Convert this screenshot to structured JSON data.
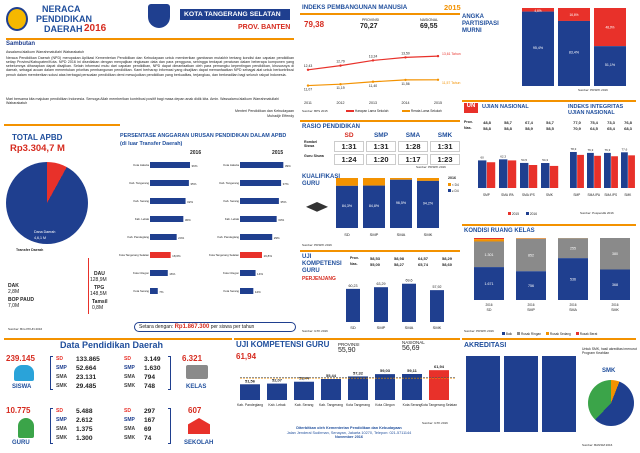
{
  "header": {
    "title_line1": "NERACA",
    "title_line2": "PENDIDIKAN",
    "title_line3": "DAERAH",
    "year": "2016",
    "region": "KOTA TANGERANG SELATAN",
    "province": "PROV. BANTEN"
  },
  "sambutan": {
    "title": "Sambutan",
    "greeting": "Assalamu'alaikum Warrahmatullahi Wabarakatuh",
    "paragraph1": "Neraca Pendidikan Daerah (NPD) merupakan Aplikasi Kementerian Pendidikan dan Kebudayaan untuk memberikan gambaran mutakhir tentang kondisi dan capaian pendidikan setiap Provinsi/Kabupaten/Kota. NPD 2016 ini disediakan dengan menyajikan ringkasan data dan para pengguna, sehingga terdapat peraturan dalam beberapa komponen yang sebelumnya diharapkan dapat disajikan. Selain informasi mutu dari capaian pendidikan, NPD dapat dimanfaatkan oleh para pemangku kepentingan pendidikan, khususnya di daerah, sebagai acuan dalam menentukan prioritas pembangunan pendidikan. Kami berharap informasi yang disajikan dapat memanfaatkan NPD sebagai alat untuk berkontribusi penuh dalam memberikan solusi atas berbagai persoalan pendidikan demi mewujudkan pendidikan yang berkualitas, terjangkau, dan berkeadilan bagi seluruh rakyat Indonesia.",
    "paragraph2": "Mari bersama kita majukan pendidikan Indonesia. Semoga Allah memberikan kontribusi positif bagi masa depan anak didik kita. Amin. Wassalamu'alaikum Warrahmatullahi Wabarakatuh",
    "signature_line1": "Menteri Pendidikan dan Kebudayaan",
    "signature_line2": "Muhadjir Effendy"
  },
  "ipm": {
    "title": "INDEKS PEMBANGUNAN MANUSIA",
    "year": "2015",
    "kota_value": "79,38",
    "provinsi_label": "PROVINSI",
    "provinsi_value": "70,27",
    "nasional_label": "NASIONAL",
    "nasional_value": "69,55",
    "line_labels_top": [
      "12,43",
      "12,79",
      "13,24",
      "13,50"
    ],
    "line_labels_bottom": [
      "11,07",
      "11,19",
      "11,40",
      "11,56"
    ],
    "end_label_red": "13,61 Tahun",
    "end_label_orange": "11,57 Tahun",
    "x_labels": [
      "2011",
      "2012",
      "2013",
      "2014",
      "2015"
    ],
    "legend_red": "Harapan Lama Sekolah",
    "legend_orange": "Rerata Lama Sekolah",
    "source": "Sumber: BPS 2015"
  },
  "apm": {
    "title_line1": "ANGKA",
    "title_line2": "PARTISIPASI",
    "title_line3": "MURNI",
    "source": "Sumber: PDSPK 2016"
  },
  "total_apbd": {
    "label": "TOTAL APBD",
    "value": "Rp3.304,7 M",
    "dana_daerah_label": "Dana Daerah",
    "dana_daerah_value": "4,6,1 M",
    "transfer_daerah_label": "Transfer Daerah",
    "dak_label": "DAK",
    "dak_value": "2,8M",
    "bop_label": "BOP PAUD",
    "bop_value": "7,0M",
    "dau_label": "DAU",
    "dau_value": "128,9M",
    "tpg_label": "TPG",
    "tpg_value": "148,5M",
    "tamsil_label": "Tamsil",
    "tamsil_value": "0,8M",
    "source": "Sumber: Biro PKUN 2016"
  },
  "anggaran": {
    "title": "PERSENTASE ANGGARAN URUSAN PENDIDIKAN DALAM APBD",
    "subtitle": "(di luar Transfer Daerah)",
    "year_left": "2016",
    "year_right": "2015",
    "footer_label": "Setara dengan:",
    "footer_value": "Rp1.867.300",
    "footer_suffix": "per siswa per tahun"
  },
  "rasio": {
    "title": "RASIO PENDIDIKAN",
    "headers": [
      "SD",
      "SMP",
      "SMA",
      "SMK"
    ],
    "rombel_label": "Rombel Siswa",
    "guru_label": "Guru Siswa",
    "rombel": [
      "1:31",
      "1:31",
      "1:28",
      "1:31"
    ],
    "guru": [
      "1:24",
      "1:20",
      "1:17",
      "1:23"
    ],
    "source": "Sumber: PDSPK 2016"
  },
  "un": {
    "badge": "UN",
    "title_left": "UJIAN NASIONAL",
    "title_right": "INDEKS INTEGRITAS UJIAN NASIONAL",
    "left_row1_label": "Prov.",
    "left_row1": [
      "48,8",
      "58,7",
      "67,4",
      "54,7"
    ],
    "left_row2_label": "Nas.",
    "left_row2": [
      "58,8",
      "58,8",
      "58,9",
      "58,5"
    ],
    "right_row1": [
      "77,0",
      "75,4",
      "73,3",
      "76,8"
    ],
    "right_row2": [
      "70,9",
      "64,5",
      "65,4",
      "68,3"
    ],
    "cats": [
      "SMP",
      "SMA IPA",
      "SMA IPS",
      "SMK"
    ],
    "legend_2015": "2015",
    "legend_2016": "2016",
    "source": "Sumber: Puspendik 2016"
  },
  "kualifikasi": {
    "title_line1": "KUALIFIKASI",
    "title_line2": "GURU",
    "legend": [
      "< D4",
      "≥ D4"
    ],
    "year": "2016",
    "source": "Sumber: PDSPK 2016"
  },
  "ukg_small": {
    "title_line1": "UJI",
    "title_line2": "KOMPETENSI",
    "title_line3": "GURU",
    "subtitle": "PERJENJANG",
    "prov_label": "Prov.",
    "nas_label": "Nas.",
    "prov": [
      "58,53",
      "58,98",
      "64,57",
      "58,29"
    ],
    "nas": [
      "55,00",
      "58,27",
      "65,74",
      "58,60"
    ],
    "cats": [
      "SD",
      "SMP",
      "SMA",
      "SMK"
    ],
    "source": "Sumber: GTK 2016"
  },
  "kondisi_ruang": {
    "title": "KONDISI RUANG KELAS",
    "cats": [
      "SD",
      "SMP",
      "SMA",
      "SMK"
    ],
    "years": [
      "2016",
      "2016",
      "2016",
      "2016"
    ],
    "legend": [
      "Baik",
      "Rusak Ringan",
      "Rusak Sedang",
      "Rusak Berat"
    ],
    "source": "Sumber: PDSPK 2016"
  },
  "data_pendidikan": {
    "title": "Data Pendidikan Daerah",
    "siswa_total": "239.145",
    "siswa_label": "SISWA",
    "siswa_sd": "133.865",
    "siswa_smp": "52.664",
    "siswa_sma": "23.131",
    "siswa_smk": "29.485",
    "guru_total": "10.775",
    "guru_label": "GURU",
    "guru_sd": "5.488",
    "guru_smp": "2.612",
    "guru_sma": "1.375",
    "guru_smk": "1.300",
    "kelas_total": "6.321",
    "kelas_label": "KELAS",
    "kelas_sd": "3.149",
    "kelas_smp": "1.630",
    "kelas_sma": "794",
    "kelas_smk": "748",
    "sekolah_total": "607",
    "sekolah_label": "SEKOLAH",
    "sekolah_sd": "297",
    "sekolah_smp": "167",
    "sekolah_sma": "69",
    "sekolah_smk": "74",
    "labels": [
      "SD",
      "SMP",
      "SMA",
      "SMK"
    ]
  },
  "ukg": {
    "title": "UJI KOMPETENSI GURU",
    "value": "61,94",
    "provinsi_label": "PROVINSI",
    "provinsi_value": "55,90",
    "nasional_label": "NASIONAL",
    "nasional_value": "56,69",
    "footer1": "Diterbitkan oleh Kementerian Pendidikan dan Kebudayaan",
    "footer2": "Jalan Jenderal Sudirman, Senayan, Jakarta 10270, Telepon: 021-5711144",
    "footer3": "November 2016",
    "source": "Sumber: GTK 2016"
  },
  "akreditasi": {
    "title": "AKREDITASI",
    "note": "Untuk SMK, hasil akreditasi menurut Program Keahlian",
    "smk_label": "SMK",
    "source": "Sumber: BANSM 2016"
  },
  "colors": {
    "red": "#e8312a",
    "navy": "#1f3f8f",
    "orange": "#f39200",
    "green": "#3ba449",
    "grey": "#8a8a8a"
  },
  "chart_data": [
    {
      "type": "line",
      "id": "ipm-lama-sekolah",
      "x": [
        "2011",
        "2012",
        "2013",
        "2014",
        "2015"
      ],
      "series": [
        {
          "name": "Harapan Lama Sekolah",
          "values": [
            12.43,
            12.79,
            13.24,
            13.5,
            13.61
          ]
        },
        {
          "name": "Rerata Lama Sekolah",
          "values": [
            11.07,
            11.19,
            11.4,
            11.56,
            11.57
          ]
        }
      ],
      "ylim": [
        10,
        15
      ]
    },
    {
      "type": "bar",
      "id": "apm",
      "categories": [
        "SD",
        "SMP",
        "SMA"
      ],
      "series": [
        {
          "name": "navy",
          "values": [
            95.4,
            83.4,
            51.1
          ]
        },
        {
          "name": "red",
          "values": [
            4.6,
            16.6,
            48.9
          ]
        }
      ],
      "stacked": true
    },
    {
      "type": "bar",
      "id": "anggaran-2016",
      "categories": [
        "Kota Jakarta",
        "Kab. Tangerang",
        "Kab. Serang",
        "Kab. Lebak",
        "Kab. Pandeglang",
        "Kota Tangerang Selatan",
        "Kota Cilegon",
        "Kota Serang"
      ],
      "values": [
        36.0,
        35.0,
        32.0,
        30.0,
        24.0,
        18.6,
        16.0,
        7.0
      ]
    },
    {
      "type": "bar",
      "id": "anggaran-2015",
      "categories": [
        "Kota Jakarta",
        "Kab. Tangerang",
        "Kab. Serang",
        "Kab. Lebak",
        "Kab. Pandeglang",
        "Kota Tangerang Selatan",
        "Kota Cilegon",
        "Kota Serang"
      ],
      "values": [
        39.0,
        37.0,
        35.0,
        33.0,
        29.0,
        19.8,
        14.0,
        12.0
      ]
    },
    {
      "type": "bar",
      "id": "kualifikasi-guru",
      "categories": [
        "SD",
        "SMP",
        "SMA",
        "SMK"
      ],
      "series": [
        {
          "name": "≥ D4",
          "values": [
            84.3,
            84.8,
            96.5,
            94.2
          ]
        },
        {
          "name": "< D4",
          "values": [
            15.7,
            15.2,
            3.5,
            5.8
          ]
        }
      ],
      "stacked": true
    },
    {
      "type": "bar",
      "id": "un",
      "categories": [
        "SMP",
        "SMA IPA",
        "SMA IPS",
        "SMK"
      ],
      "series": [
        {
          "name": "2015",
          "values": [
            60.0,
            62.3,
            54.5,
            54.3
          ]
        },
        {
          "name": "2016",
          "values": [
            56.0,
            60.0,
            50.0,
            48.0
          ]
        }
      ]
    },
    {
      "type": "bar",
      "id": "integritas-un",
      "categories": [
        "SMP",
        "SMA IPA",
        "SMA IPS",
        "SMK"
      ],
      "series": [
        {
          "name": "2015",
          "values": [
            78.3,
            76.3,
            76.3,
            77.6
          ]
        },
        {
          "name": "2016",
          "values": [
            72.0,
            70.0,
            69.0,
            71.0
          ]
        }
      ]
    },
    {
      "type": "bar",
      "id": "ukg-perjenjang",
      "categories": [
        "SD",
        "SMP",
        "SMA",
        "SMK"
      ],
      "values": [
        60.23,
        63.29,
        69.6,
        57.92
      ]
    },
    {
      "type": "bar",
      "id": "kondisi-ruang-kelas",
      "categories": [
        "SD",
        "SMP",
        "SMA",
        "SMK"
      ],
      "series": [
        {
          "name": "Baik",
          "values": [
            1671,
            756,
            536,
            368
          ]
        },
        {
          "name": "Rusak Ringan",
          "values": [
            1301,
            852,
            255,
            380
          ]
        },
        {
          "name": "Rusak Sedang",
          "values": [
            120,
            15,
            3,
            0
          ]
        },
        {
          "name": "Rusak Berat",
          "values": [
            57,
            7,
            0,
            0
          ]
        }
      ],
      "stacked": true
    },
    {
      "type": "bar",
      "id": "ukg-kabkota",
      "categories": [
        "Kab. Pandeglang",
        "Kab. Lebak",
        "Kab. Serang",
        "Kab. Tangerang",
        "Kota Tangerang",
        "Kota Cilegon",
        "Kota Serang",
        "Kota Tangerang Selatan"
      ],
      "values": [
        51.56,
        52.07,
        53.44,
        55.44,
        57.32,
        59.03,
        59.11,
        61.94
      ]
    }
  ]
}
